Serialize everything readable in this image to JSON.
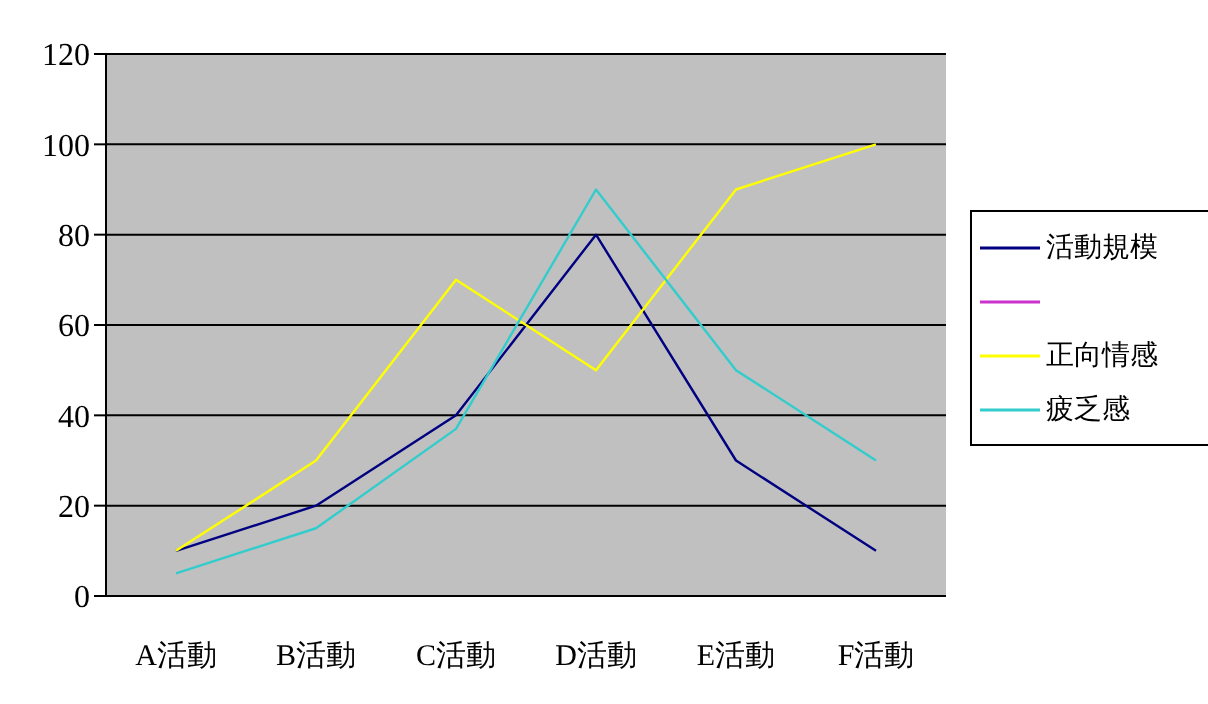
{
  "chart_data": {
    "type": "line",
    "categories": [
      "A活動",
      "B活動",
      "C活動",
      "D活動",
      "E活動",
      "F活動"
    ],
    "series": [
      {
        "name": "活動規模",
        "color": "#000080",
        "values": [
          10,
          20,
          40,
          80,
          30,
          10
        ]
      },
      {
        "color": "#cc33cc",
        "values": [
          null,
          null,
          null,
          null,
          null,
          null
        ]
      },
      {
        "name": "正向情感",
        "color": "#ffff00",
        "values": [
          10,
          30,
          70,
          50,
          90,
          100
        ]
      },
      {
        "name": "疲乏感",
        "color": "#33cccc",
        "values": [
          5,
          15,
          37,
          90,
          50,
          30
        ]
      }
    ],
    "ylim": [
      0,
      120
    ],
    "yticks": [
      0,
      20,
      40,
      60,
      80,
      100,
      120
    ],
    "grid": "y",
    "legend": "right",
    "marker": "none",
    "line_style": "solid"
  }
}
